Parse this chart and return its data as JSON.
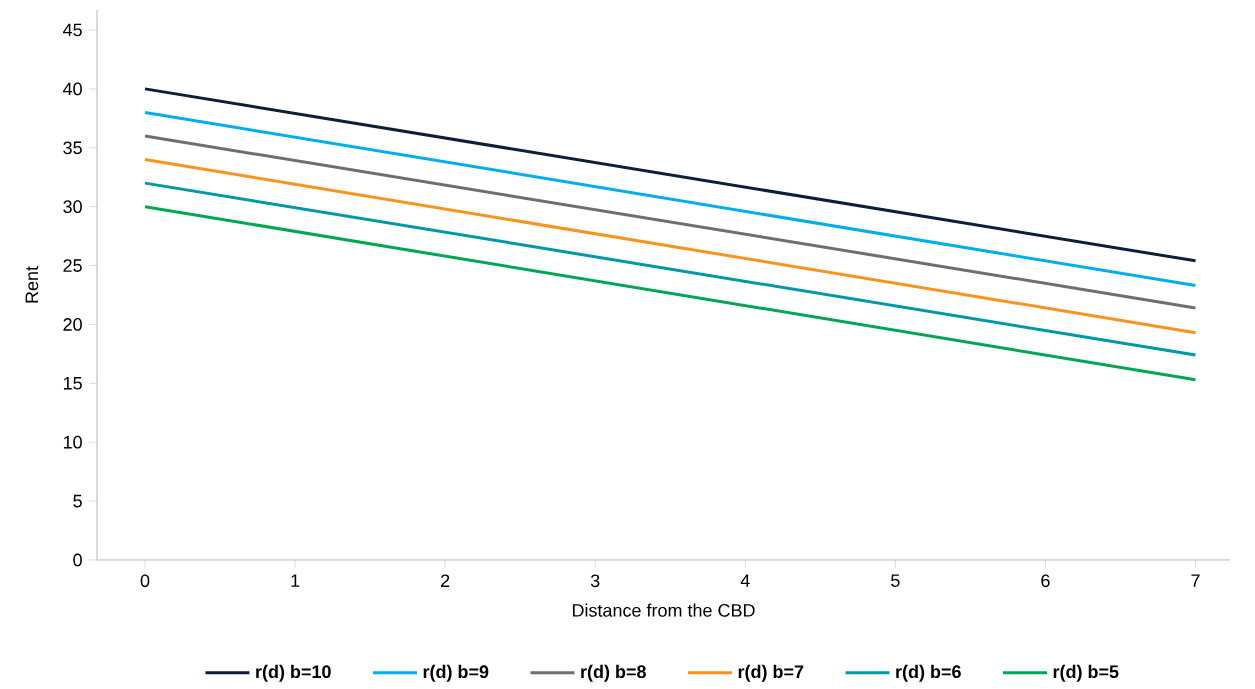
{
  "chart_data": {
    "type": "line",
    "xlabel": "Distance from the CBD",
    "ylabel": "Rent",
    "x": [
      0,
      7
    ],
    "series": [
      {
        "name": "r(d) b=10",
        "color": "#0b1f3a",
        "values": [
          40,
          25.4
        ]
      },
      {
        "name": "r(d) b=9",
        "color": "#00aeef",
        "values": [
          38,
          23.3
        ]
      },
      {
        "name": "r(d) b=8",
        "color": "#6d6e71",
        "values": [
          36,
          21.4
        ]
      },
      {
        "name": "r(d) b=7",
        "color": "#f7931e",
        "values": [
          34,
          19.3
        ]
      },
      {
        "name": "r(d) b=6",
        "color": "#0097a7",
        "values": [
          32,
          17.4
        ]
      },
      {
        "name": "r(d) b=5",
        "color": "#00a651",
        "values": [
          30,
          15.3
        ]
      }
    ],
    "xlim": [
      -0.32,
      7.23
    ],
    "ylim": [
      0,
      46.7
    ],
    "xticks": [
      0,
      1,
      2,
      3,
      4,
      5,
      6,
      7
    ],
    "yticks": [
      0,
      5,
      10,
      15,
      20,
      25,
      30,
      35,
      40,
      45
    ],
    "legend": "bottom",
    "grid": false
  }
}
